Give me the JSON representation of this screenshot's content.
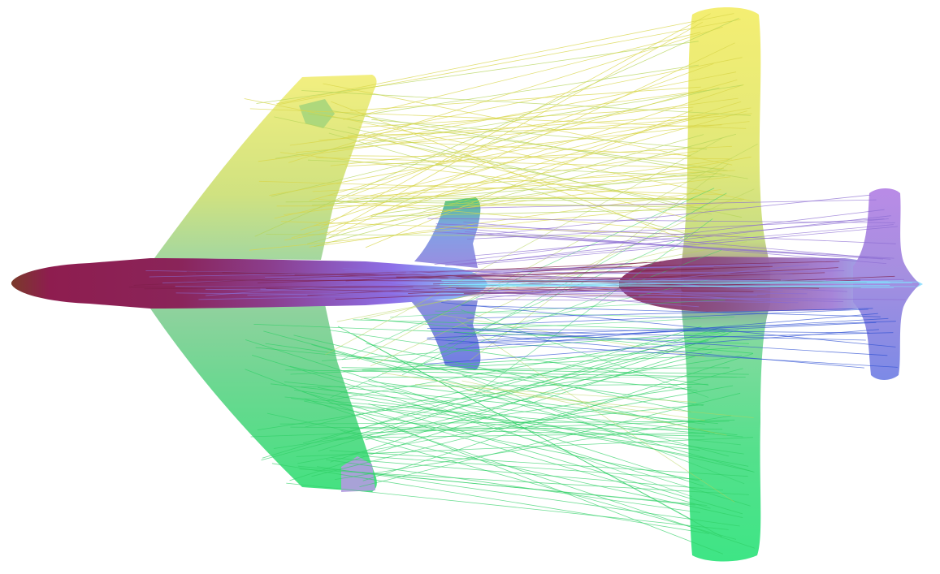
{
  "scene": {
    "background": "#ffffff",
    "left_shape": {
      "kind": "delta-wing aircraft silhouette",
      "colors": [
        "#8e1d4f",
        "#9fd46f",
        "#e8ee7a",
        "#38e07b",
        "#a99ad9",
        "#6fb3ff"
      ]
    },
    "right_shape": {
      "kind": "straight-wing aircraft silhouette",
      "colors": [
        "#8e1d4f",
        "#f2ef72",
        "#3ee58a",
        "#b58ae6",
        "#7b8de8",
        "#86e5ff"
      ]
    },
    "correspondence_lines": {
      "palette": [
        "#d8d54a",
        "#b6d45a",
        "#31d067",
        "#8a6bd1",
        "#2c4fd3",
        "#7d1e48",
        "#7fe3ff"
      ]
    }
  }
}
